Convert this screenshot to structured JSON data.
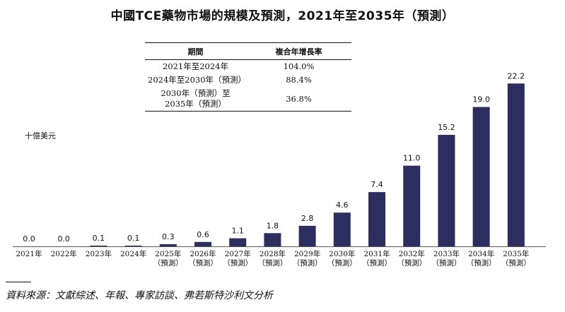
{
  "title": "中國TCE藥物市場的規模及預測，2021年至2035年（預測）",
  "table": {
    "headers": [
      "期間",
      "複合年增長率"
    ],
    "rows": [
      {
        "period": [
          "2021年至2024年"
        ],
        "cagr": "104.0%"
      },
      {
        "period": [
          "2024年至2030年（預測）"
        ],
        "cagr": "88.4%"
      },
      {
        "period": [
          "2030年（預測）至",
          "2035年（預測）"
        ],
        "cagr": "36.8%"
      }
    ]
  },
  "unit_label": "十億美元",
  "source": "資料來源：文獻綜述、年報、專家訪談、弗若斯特沙利文分析",
  "colors": {
    "bar": "#2b2e5e",
    "axis": "#555555"
  },
  "chart_data": {
    "type": "bar",
    "categories": [
      "2021年",
      "2022年",
      "2023年",
      "2024年",
      "2025年",
      "2026年",
      "2027年",
      "2028年",
      "2029年",
      "2030年",
      "2031年",
      "2032年",
      "2033年",
      "2034年",
      "2035年"
    ],
    "forecast_suffix": "（預測）",
    "forecast_from_index": 4,
    "values": [
      0.0,
      0.0,
      0.1,
      0.1,
      0.3,
      0.6,
      1.1,
      1.8,
      2.8,
      4.6,
      7.4,
      11.0,
      15.2,
      19.0,
      22.2
    ],
    "value_labels": [
      "0.0",
      "0.0",
      "0.1",
      "0.1",
      "0.3",
      "0.6",
      "1.1",
      "1.8",
      "2.8",
      "4.6",
      "7.4",
      "11.0",
      "15.2",
      "19.0",
      "22.2"
    ],
    "ylabel": "十億美元",
    "ylim": [
      0,
      23
    ],
    "grid": false,
    "legend": "none"
  }
}
